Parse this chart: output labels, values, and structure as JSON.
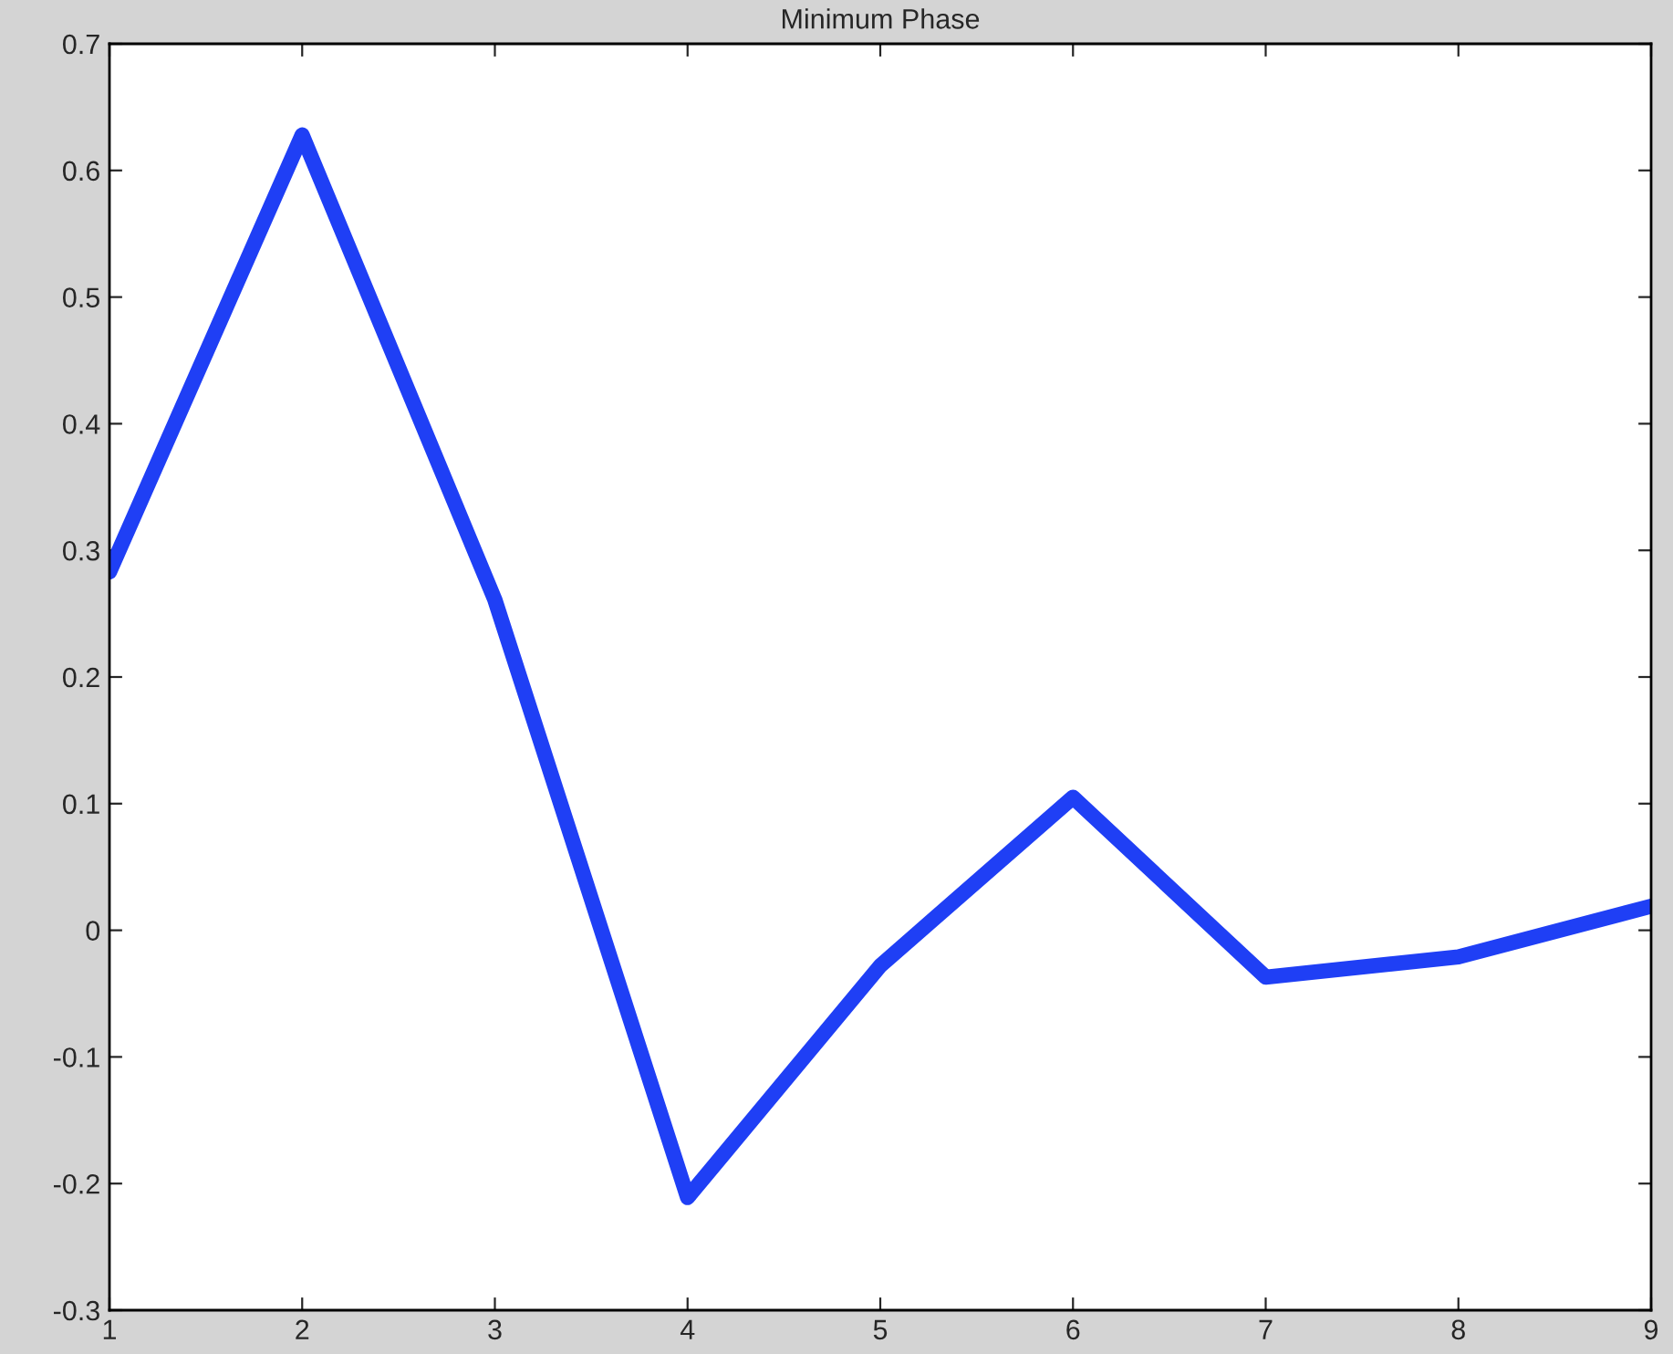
{
  "chart_data": {
    "type": "line",
    "title": "Minimum Phase",
    "x": [
      1,
      2,
      3,
      4,
      5,
      6,
      7,
      8,
      9
    ],
    "series": [
      {
        "color": "#1f3ff5",
        "values": [
          0.283,
          0.628,
          0.261,
          -0.211,
          -0.028,
          0.105,
          -0.037,
          -0.021,
          0.019
        ]
      }
    ],
    "xlim": [
      1,
      9
    ],
    "xticks": [
      1,
      2,
      3,
      4,
      5,
      6,
      7,
      8,
      9
    ],
    "ylim": [
      -0.3,
      0.7
    ],
    "yticks": [
      -0.3,
      -0.2,
      -0.1,
      0,
      0.1,
      0.2,
      0.3,
      0.4,
      0.5,
      0.6,
      0.7
    ],
    "grid": false,
    "marker": "none",
    "line_style": "solid"
  }
}
